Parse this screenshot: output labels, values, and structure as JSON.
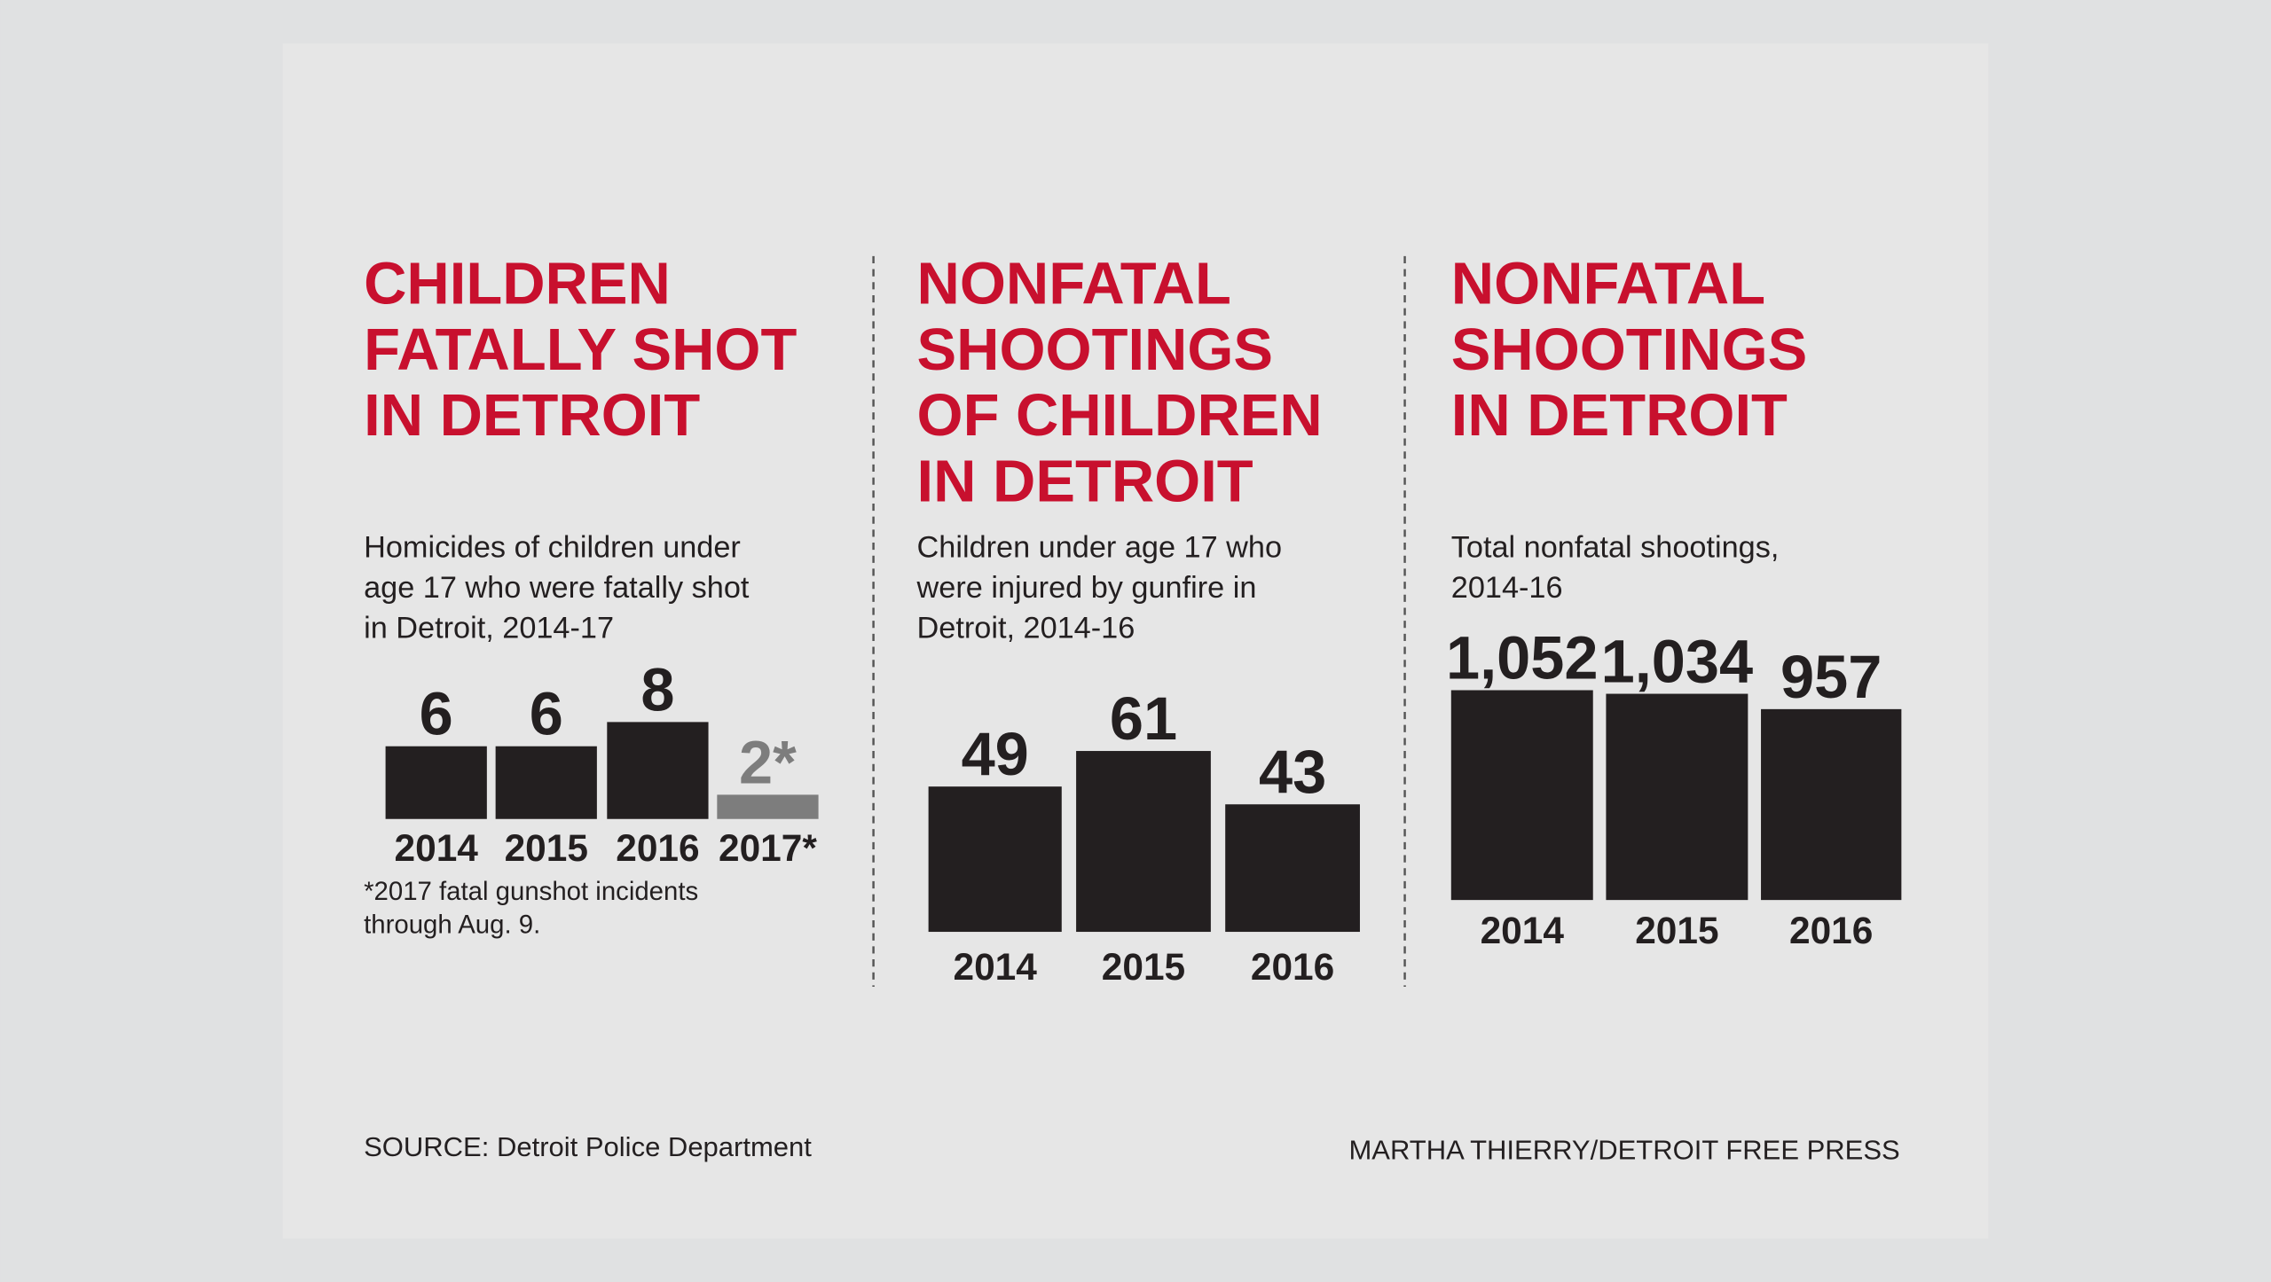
{
  "chart_data": [
    {
      "type": "bar",
      "title": [
        "CHILDREN",
        "FATALLY SHOT",
        "IN DETROIT"
      ],
      "subtitle": [
        "Homicides of children under",
        "age 17 who were fatally shot",
        "in Detroit, 2014-17"
      ],
      "categories": [
        "2014",
        "2015",
        "2016",
        "2017*"
      ],
      "values": [
        6,
        6,
        8,
        2
      ],
      "value_labels": [
        "6",
        "6",
        "8",
        "2*"
      ],
      "colors": [
        "#231f20",
        "#231f20",
        "#231f20",
        "#7d7d7d"
      ],
      "footnote": [
        "*2017 fatal gunshot incidents",
        "through Aug. 9."
      ]
    },
    {
      "type": "bar",
      "title": [
        "NONFATAL",
        "SHOOTINGS",
        "OF CHILDREN",
        "IN DETROIT"
      ],
      "subtitle": [
        "Children under age 17 who",
        "were injured by gunfire in",
        "Detroit, 2014-16"
      ],
      "categories": [
        "2014",
        "2015",
        "2016"
      ],
      "values": [
        49,
        61,
        43
      ],
      "colors": [
        "#231f20",
        "#231f20",
        "#231f20"
      ]
    },
    {
      "type": "bar",
      "title": [
        "NONFATAL",
        "SHOOTINGS",
        "IN DETROIT"
      ],
      "subtitle": [
        "Total nonfatal shootings,",
        "2014-16"
      ],
      "categories": [
        "2014",
        "2015",
        "2016"
      ],
      "values": [
        1052,
        1034,
        957
      ],
      "value_labels": [
        "1,052",
        "1,034",
        "957"
      ],
      "colors": [
        "#231f20",
        "#231f20",
        "#231f20"
      ]
    }
  ],
  "source": "SOURCE: Detroit Police Department",
  "credit": "MARTHA THIERRY/DETROIT FREE PRESS"
}
